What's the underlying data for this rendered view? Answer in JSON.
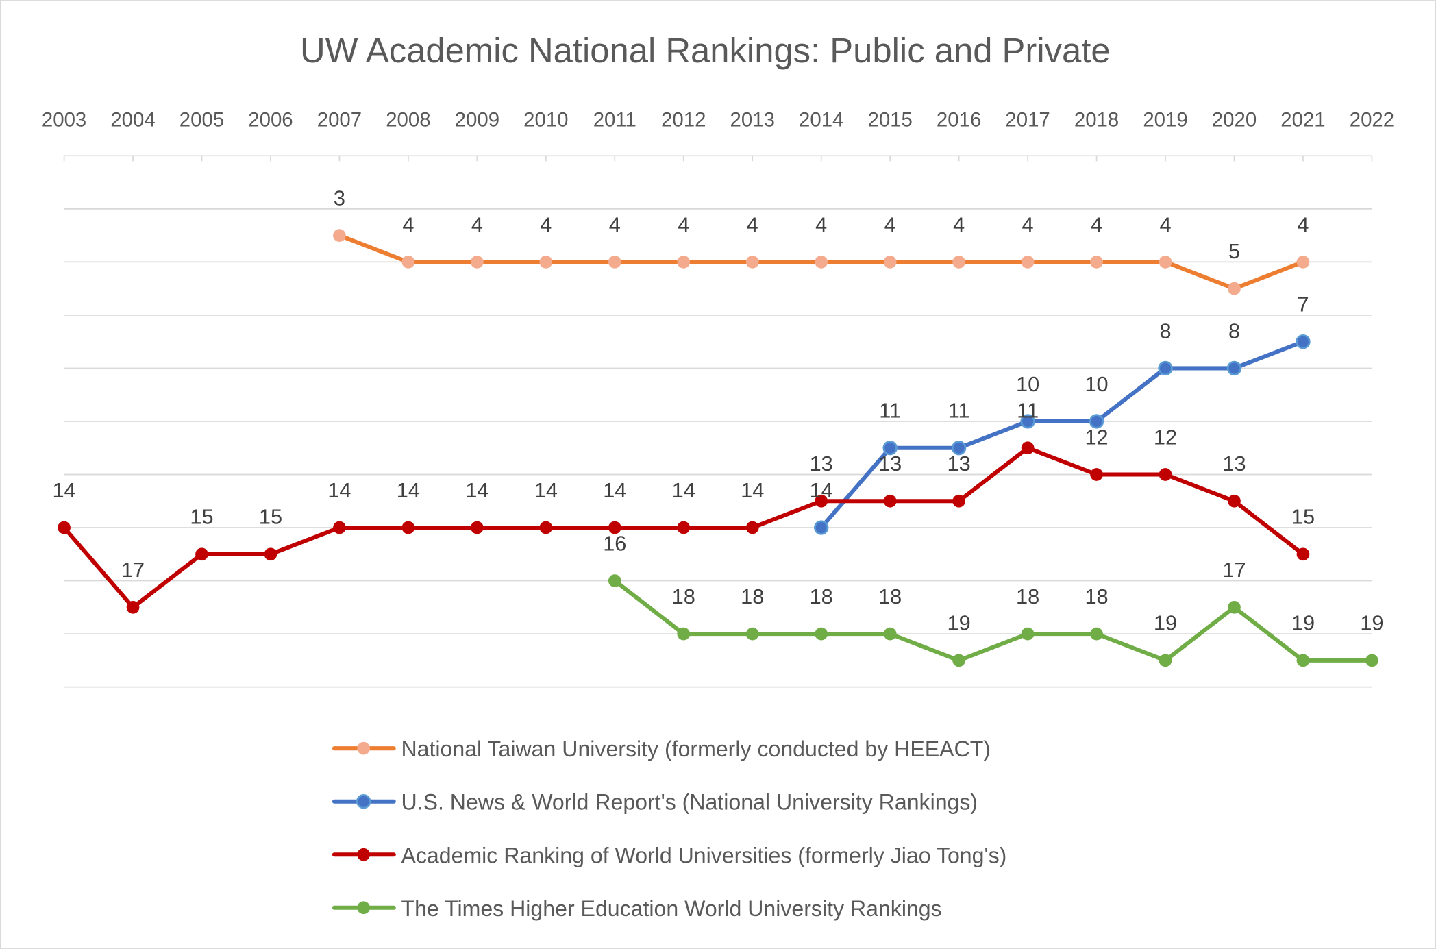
{
  "chart_data": {
    "type": "line",
    "title": "UW Academic National Rankings: Public and Private",
    "xlabel": "",
    "ylabel": "",
    "categories": [
      "2003",
      "2004",
      "2005",
      "2006",
      "2007",
      "2008",
      "2009",
      "2010",
      "2011",
      "2012",
      "2013",
      "2014",
      "2015",
      "2016",
      "2017",
      "2018",
      "2019",
      "2020",
      "2021",
      "2022"
    ],
    "y_axis": {
      "reversed": true,
      "range": [
        0,
        20
      ],
      "gridline_step": 2,
      "tick_labels_shown": false
    },
    "x_axis_position": "top",
    "grid": true,
    "legend_position": "bottom",
    "data_labels": true,
    "series": [
      {
        "name": "National Taiwan University (formerly conducted by HEEACT)",
        "line_color": "#ED7D31",
        "marker_color": "#F4AA8C",
        "values": [
          null,
          null,
          null,
          null,
          3,
          4,
          4,
          4,
          4,
          4,
          4,
          4,
          4,
          4,
          4,
          4,
          4,
          5,
          4,
          null
        ]
      },
      {
        "name": "U.S. News & World Report's (National University Rankings)",
        "line_color": "#4472C4",
        "marker_color": "#4472C4",
        "marker_edge": "#5B9BD5",
        "values": [
          null,
          null,
          null,
          null,
          null,
          null,
          null,
          null,
          null,
          null,
          null,
          14,
          11,
          11,
          10,
          10,
          8,
          8,
          7,
          null
        ]
      },
      {
        "name": "Academic Ranking of World Universities (formerly Jiao Tong's)",
        "line_color": "#C00000",
        "marker_color": "#C00000",
        "values": [
          14,
          17,
          15,
          15,
          14,
          14,
          14,
          14,
          14,
          14,
          14,
          13,
          13,
          13,
          11,
          12,
          12,
          13,
          15,
          null
        ]
      },
      {
        "name": "The Times Higher Education World University Rankings",
        "line_color": "#70AD47",
        "marker_color": "#70AD47",
        "values": [
          null,
          null,
          null,
          null,
          null,
          null,
          null,
          null,
          16,
          18,
          18,
          18,
          18,
          19,
          18,
          18,
          19,
          17,
          19,
          19
        ]
      }
    ]
  }
}
